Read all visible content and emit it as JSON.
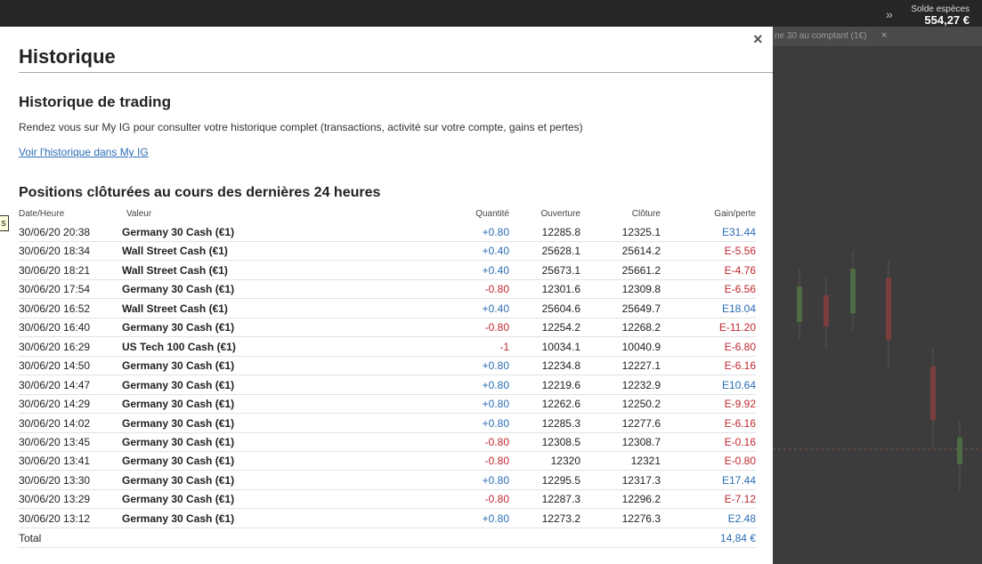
{
  "topbar": {
    "balance_label": "Solde espèces",
    "balance_value": "554,27 €"
  },
  "background": {
    "tab": "ne 30 au comptant (1€)",
    "side_label": "s"
  },
  "modal": {
    "title": "Historique",
    "section_title": "Historique de trading",
    "description": "Rendez vous sur My IG pour consulter votre historique complet (transactions, activité sur votre compte, gains et pertes)",
    "link": "Voir l'historique dans My IG",
    "table_title": "Positions clôturées au cours des dernières 24 heures"
  },
  "table": {
    "columns": [
      "Date/Heure",
      "Valeur",
      "Quantité",
      "Ouverture",
      "Clôture",
      "Gain/perte"
    ],
    "rows": [
      [
        "30/06/20 20:38",
        "Germany 30 Cash (€1)",
        "+0.80",
        "12285.8",
        "12325.1",
        "E31.44"
      ],
      [
        "30/06/20 18:34",
        "Wall Street Cash (€1)",
        "+0.40",
        "25628.1",
        "25614.2",
        "E-5.56"
      ],
      [
        "30/06/20 18:21",
        "Wall Street Cash (€1)",
        "+0.40",
        "25673.1",
        "25661.2",
        "E-4.76"
      ],
      [
        "30/06/20 17:54",
        "Germany 30 Cash (€1)",
        "-0.80",
        "12301.6",
        "12309.8",
        "E-6.56"
      ],
      [
        "30/06/20 16:52",
        "Wall Street Cash (€1)",
        "+0.40",
        "25604.6",
        "25649.7",
        "E18.04"
      ],
      [
        "30/06/20 16:40",
        "Germany 30 Cash (€1)",
        "-0.80",
        "12254.2",
        "12268.2",
        "E-11.20"
      ],
      [
        "30/06/20 16:29",
        "US Tech 100 Cash (€1)",
        "-1",
        "10034.1",
        "10040.9",
        "E-6.80"
      ],
      [
        "30/06/20 14:50",
        "Germany 30 Cash (€1)",
        "+0.80",
        "12234.8",
        "12227.1",
        "E-6.16"
      ],
      [
        "30/06/20 14:47",
        "Germany 30 Cash (€1)",
        "+0.80",
        "12219.6",
        "12232.9",
        "E10.64"
      ],
      [
        "30/06/20 14:29",
        "Germany 30 Cash (€1)",
        "+0.80",
        "12262.6",
        "12250.2",
        "E-9.92"
      ],
      [
        "30/06/20 14:02",
        "Germany 30 Cash (€1)",
        "+0.80",
        "12285.3",
        "12277.6",
        "E-6.16"
      ],
      [
        "30/06/20 13:45",
        "Germany 30 Cash (€1)",
        "-0.80",
        "12308.5",
        "12308.7",
        "E-0.16"
      ],
      [
        "30/06/20 13:41",
        "Germany 30 Cash (€1)",
        "-0.80",
        "12320",
        "12321",
        "E-0.80"
      ],
      [
        "30/06/20 13:30",
        "Germany 30 Cash (€1)",
        "+0.80",
        "12295.5",
        "12317.3",
        "E17.44"
      ],
      [
        "30/06/20 13:29",
        "Germany 30 Cash (€1)",
        "-0.80",
        "12287.3",
        "12296.2",
        "E-7.12"
      ],
      [
        "30/06/20 13:12",
        "Germany 30 Cash (€1)",
        "+0.80",
        "12273.2",
        "12276.3",
        "E2.48"
      ]
    ],
    "total": {
      "label": "Total",
      "value": "14,84 €"
    }
  }
}
